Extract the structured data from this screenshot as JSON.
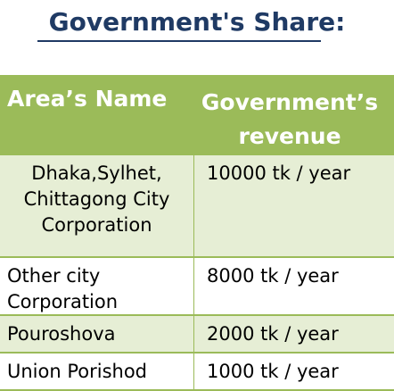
{
  "title": "Government's Share:",
  "table": {
    "headers": [
      "Area’s Name",
      "Government’s revenue"
    ],
    "header_line1": "Government’s",
    "header_line2": "revenue",
    "rows": [
      {
        "area_lines": [
          "Dhaka,Sylhet,",
          "Chittagong City",
          "Corporation"
        ],
        "revenue": "10000 tk / year"
      },
      {
        "area_lines": [
          "Other city",
          "Corporation"
        ],
        "revenue": "8000 tk / year"
      },
      {
        "area_lines": [
          "Pouroshova"
        ],
        "revenue": "2000 tk / year"
      },
      {
        "area_lines": [
          "Union Porishod"
        ],
        "revenue": "1000 tk / year"
      }
    ]
  },
  "colors": {
    "header_bg": "#9bbb59",
    "row_shade": "#e6eed5",
    "title": "#1f3a64"
  }
}
